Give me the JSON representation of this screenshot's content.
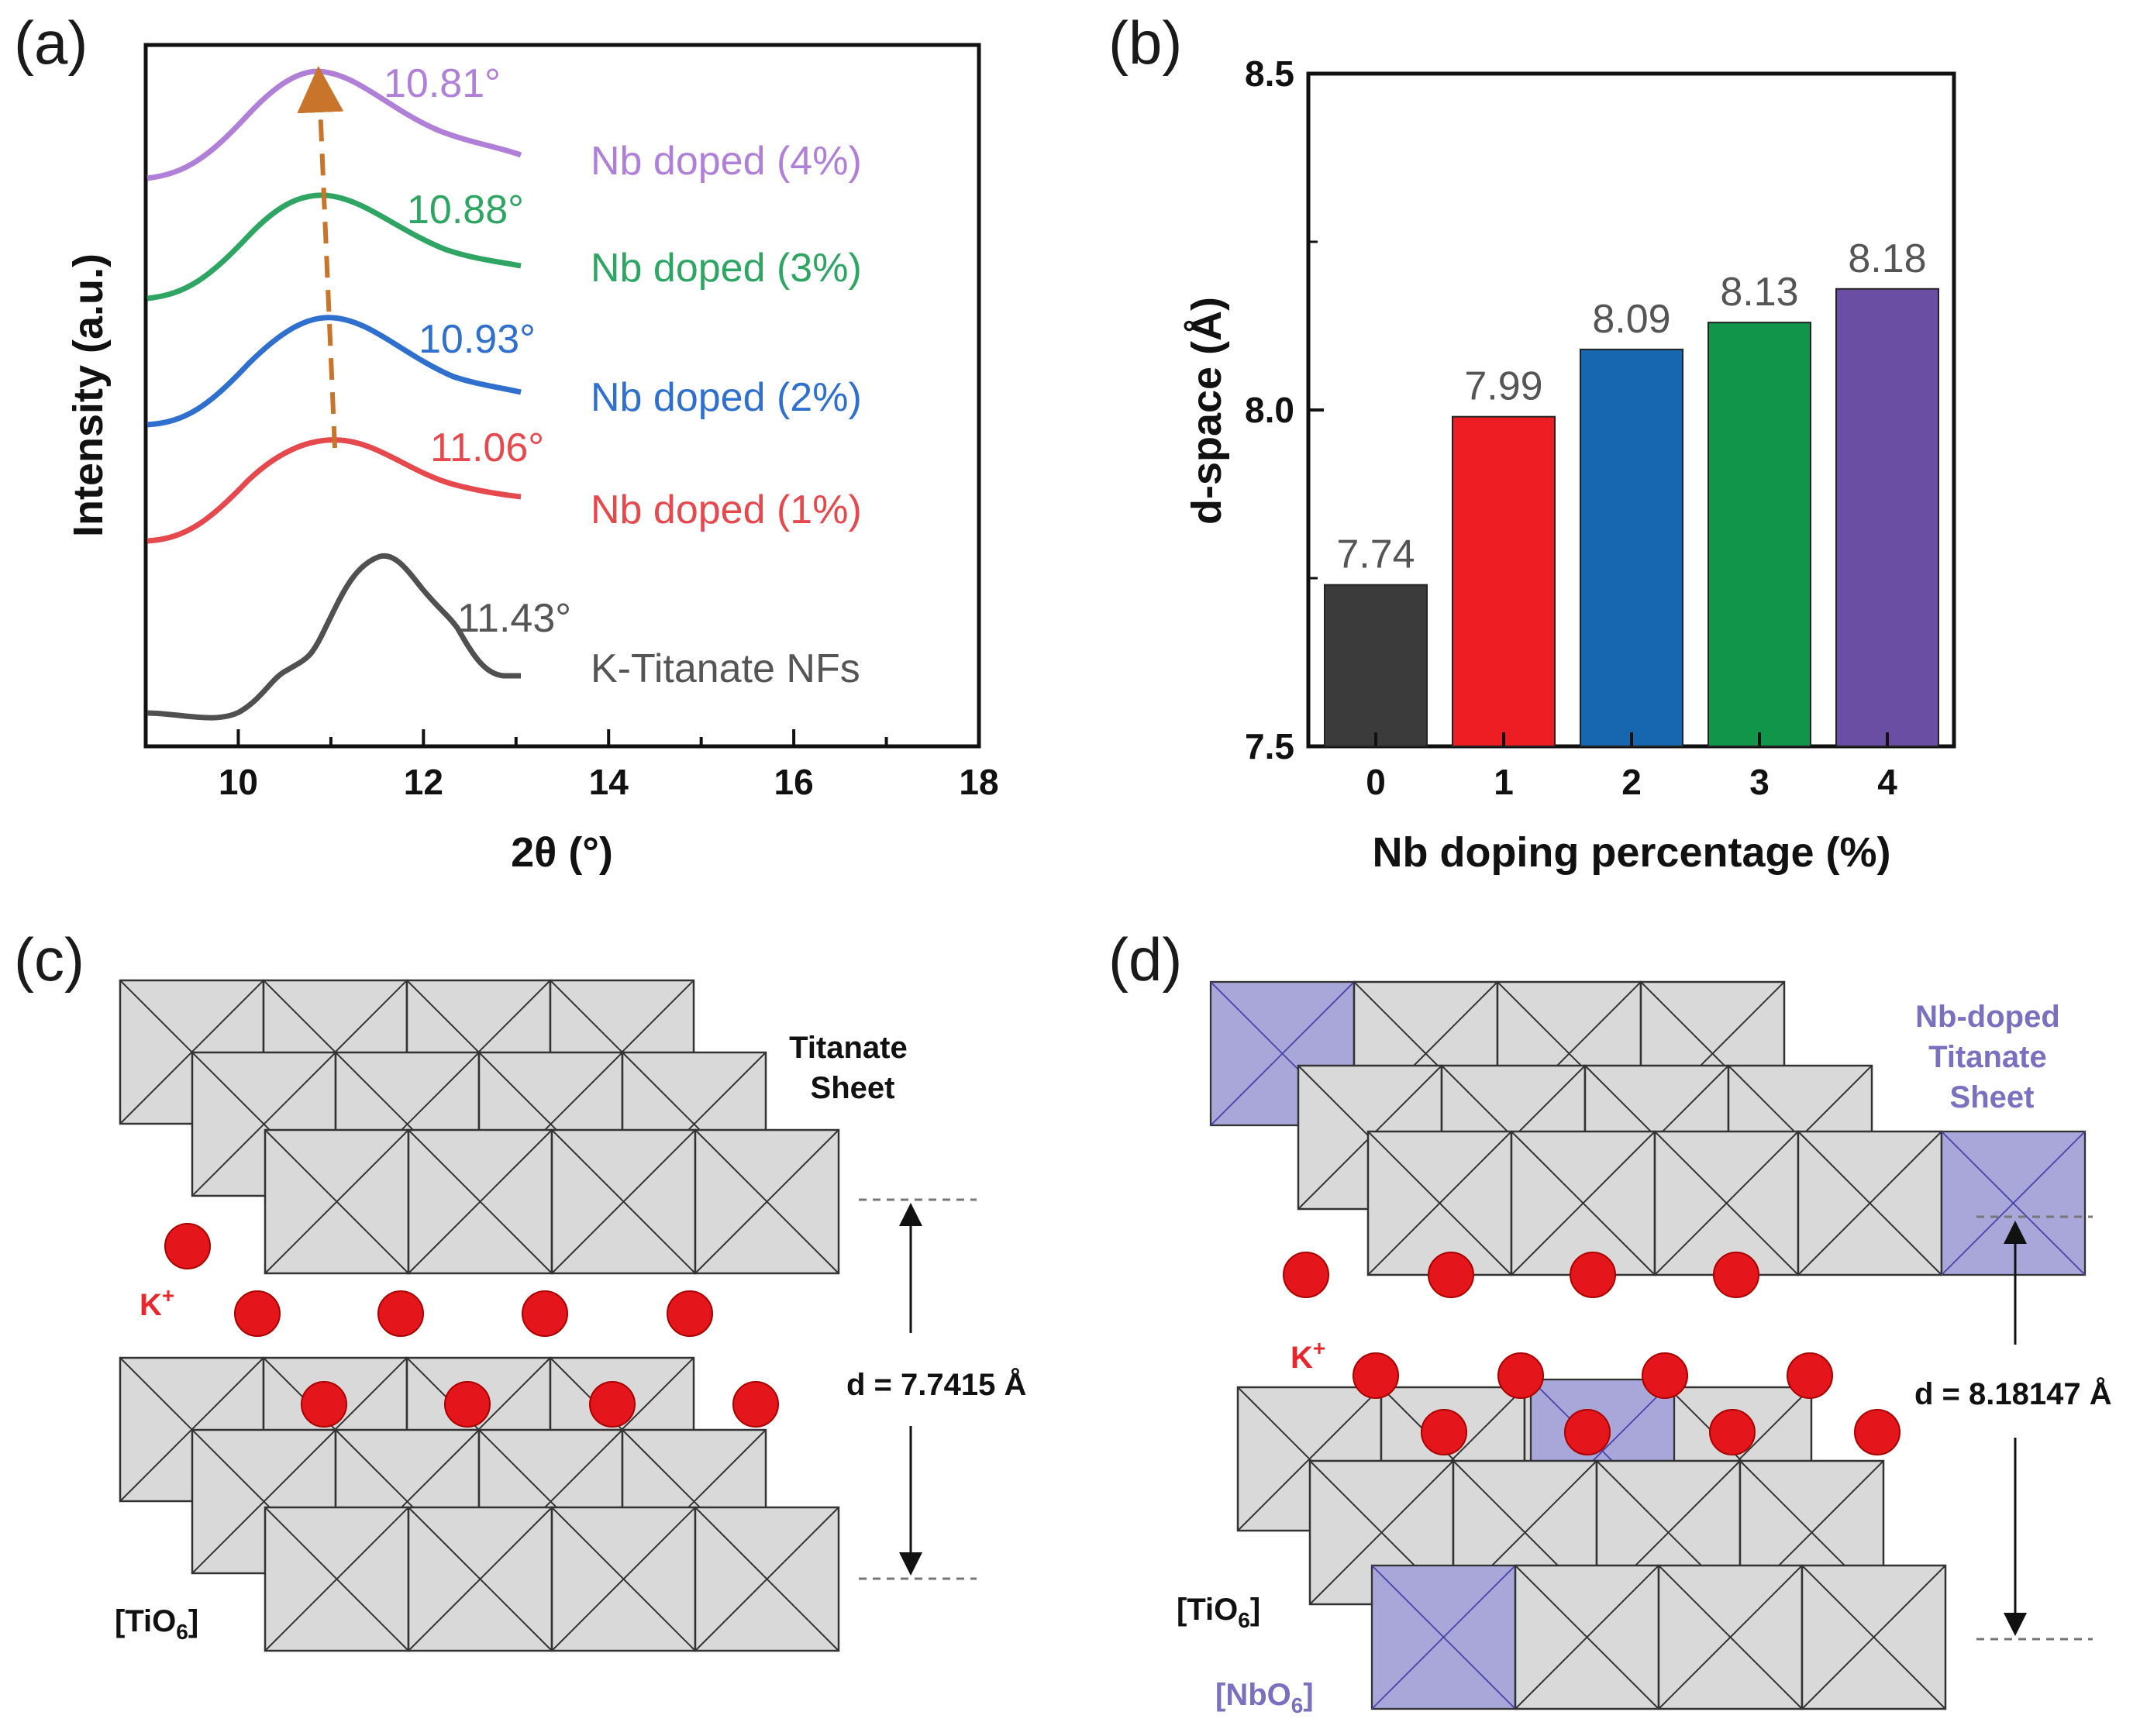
{
  "panel_a": {
    "letter": "(a)",
    "xlabel": "2θ (°)",
    "ylabel": "Intensity (a.u.)",
    "curves": [
      {
        "name": "K-Titanate NFs",
        "peak": "11.43°",
        "color": "#505050"
      },
      {
        "name": "Nb doped (1%)",
        "peak": "11.06°",
        "color": "#e5484d"
      },
      {
        "name": "Nb doped (2%)",
        "peak": "10.93°",
        "color": "#2f6fce"
      },
      {
        "name": "Nb doped (3%)",
        "peak": "10.88°",
        "color": "#2fa563"
      },
      {
        "name": "Nb doped (4%)",
        "peak": "10.81°",
        "color": "#b07fd8"
      }
    ],
    "arrow_color": "#c8742a"
  },
  "panel_b": {
    "letter": "(b)"
  },
  "chart_data": [
    {
      "type": "line",
      "title": "(a)",
      "xlabel": "2θ (°)",
      "ylabel": "Intensity (a.u.)",
      "xlim": [
        9,
        18
      ],
      "xticks": [
        "10",
        "12",
        "14",
        "16",
        "18"
      ],
      "series": [
        {
          "name": "K-Titanate NFs",
          "peak_position": 11.43,
          "peak_label": "11.43°",
          "color": "#505050"
        },
        {
          "name": "Nb doped (1%)",
          "peak_position": 11.06,
          "peak_label": "11.06°",
          "color": "#e5484d"
        },
        {
          "name": "Nb doped (2%)",
          "peak_position": 10.93,
          "peak_label": "10.93°",
          "color": "#2f6fce"
        },
        {
          "name": "Nb doped (3%)",
          "peak_position": 10.88,
          "peak_label": "10.88°",
          "color": "#2fa563"
        },
        {
          "name": "Nb doped (4%)",
          "peak_position": 10.81,
          "peak_label": "10.81°",
          "color": "#b07fd8"
        }
      ]
    },
    {
      "type": "bar",
      "title": "(b)",
      "xlabel": "Nb doping percentage (%)",
      "ylabel": "d-space (Å)",
      "categories": [
        "0",
        "1",
        "2",
        "3",
        "4"
      ],
      "values": [
        7.74,
        7.99,
        8.09,
        8.13,
        8.18
      ],
      "value_labels": [
        "7.74",
        "7.99",
        "8.09",
        "8.13",
        "8.18"
      ],
      "colors": [
        "#3b3b3b",
        "#ee1d24",
        "#1667b0",
        "#10954a",
        "#6a4ea3"
      ],
      "ylim": [
        7.5,
        8.5
      ],
      "yticks": [
        "7.5",
        "8.0",
        "8.5"
      ]
    }
  ],
  "panel_c": {
    "letter": "(c)",
    "sheet_label_1": "Titanate",
    "sheet_label_2": "Sheet",
    "ion_label": "K",
    "ion_charge": "+",
    "d_label": "d = 7.7415 Å",
    "unit_label": "[TiO",
    "unit_sub": "6",
    "unit_close": "]"
  },
  "panel_d": {
    "letter": "(d)",
    "sheet_label_1": "Nb-doped",
    "sheet_label_2": "Titanate",
    "sheet_label_3": "Sheet",
    "ion_label": "K",
    "ion_charge": "+",
    "d_label": "d = 8.18147 Å",
    "unit_ti": "[TiO",
    "unit_ti_sub": "6",
    "unit_ti_close": "]",
    "unit_nb": "[NbO",
    "unit_nb_sub": "6",
    "unit_nb_close": "]"
  }
}
